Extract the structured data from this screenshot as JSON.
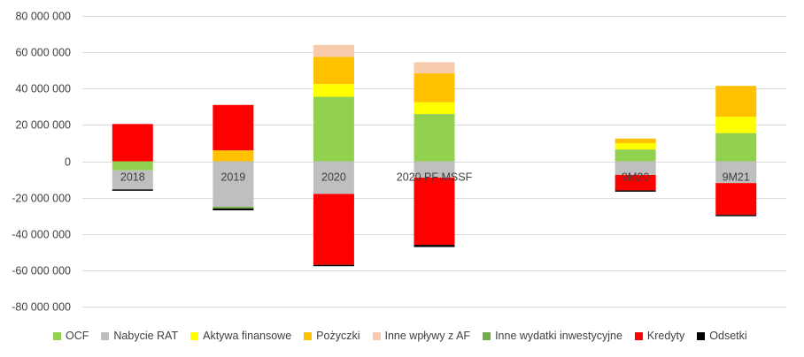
{
  "chart_data": {
    "type": "bar",
    "stacked": true,
    "title": "",
    "xlabel": "",
    "ylabel": "",
    "ylim": [
      -80000000,
      80000000
    ],
    "y_ticks": [
      80000000,
      60000000,
      40000000,
      20000000,
      0,
      -20000000,
      -40000000,
      -60000000,
      -80000000
    ],
    "y_tick_labels": [
      "80 000 000",
      "60 000 000",
      "40 000 000",
      "20 000 000",
      "0",
      "-20 000 000",
      "-40 000 000",
      "-60 000 000",
      "-80 000 000"
    ],
    "grid": true,
    "legend_position": "bottom",
    "categories": [
      "2018",
      "2019",
      "2020",
      "2020 PF MSSF",
      "",
      "9M20",
      "9M21"
    ],
    "series": [
      {
        "name": "OCF",
        "color": "#92D050",
        "values": [
          -5000000,
          0,
          35500000,
          26000000,
          null,
          6500000,
          15500000
        ]
      },
      {
        "name": "Nabycie RAT",
        "color": "#BFBFBF",
        "values": [
          -10500000,
          -25000000,
          -18000000,
          -9000000,
          null,
          -7500000,
          -12000000
        ]
      },
      {
        "name": "Aktywa finansowe",
        "color": "#FFFF00",
        "values": [
          0,
          0,
          7000000,
          6500000,
          null,
          3500000,
          9000000
        ]
      },
      {
        "name": "Pożyczki",
        "color": "#FFC000",
        "values": [
          0,
          6000000,
          15000000,
          16000000,
          null,
          2500000,
          17000000
        ]
      },
      {
        "name": "Inne wpływy z AF",
        "color": "#F8CBAD",
        "values": [
          0,
          0,
          6500000,
          6000000,
          null,
          0,
          0
        ]
      },
      {
        "name": "Inne wydatki inwestycyjne",
        "color": "#70AD47",
        "values": [
          0,
          -1000000,
          0,
          0,
          null,
          0,
          0
        ]
      },
      {
        "name": "Kredyty",
        "color": "#FF0000",
        "values": [
          20500000,
          25000000,
          -39000000,
          -37000000,
          null,
          -8500000,
          -17500000
        ]
      },
      {
        "name": "Odsetki",
        "color": "#000000",
        "values": [
          -700000,
          -1000000,
          -700000,
          -1200000,
          null,
          -700000,
          -700000
        ]
      }
    ]
  }
}
